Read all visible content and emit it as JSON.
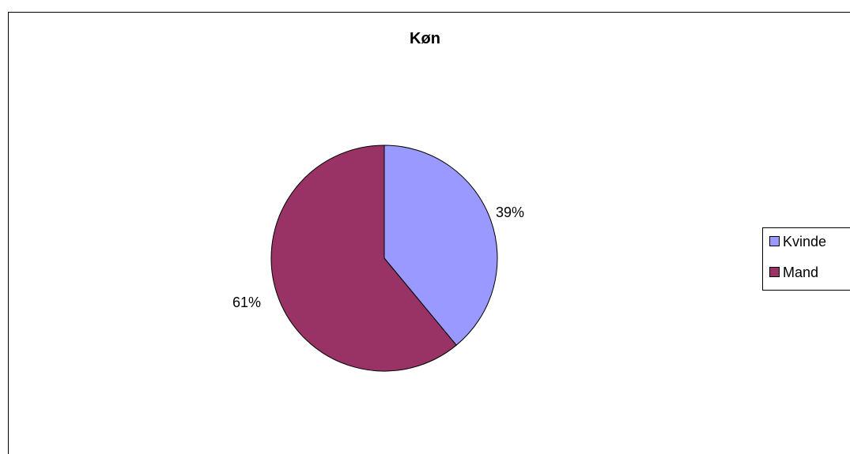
{
  "chart_data": {
    "type": "pie",
    "title": "Køn",
    "categories": [
      "Kvinde",
      "Mand"
    ],
    "values": [
      39,
      61
    ],
    "data_labels": [
      "39%",
      "61%"
    ],
    "colors": [
      "#9999ff",
      "#993366"
    ],
    "legend": "right"
  }
}
